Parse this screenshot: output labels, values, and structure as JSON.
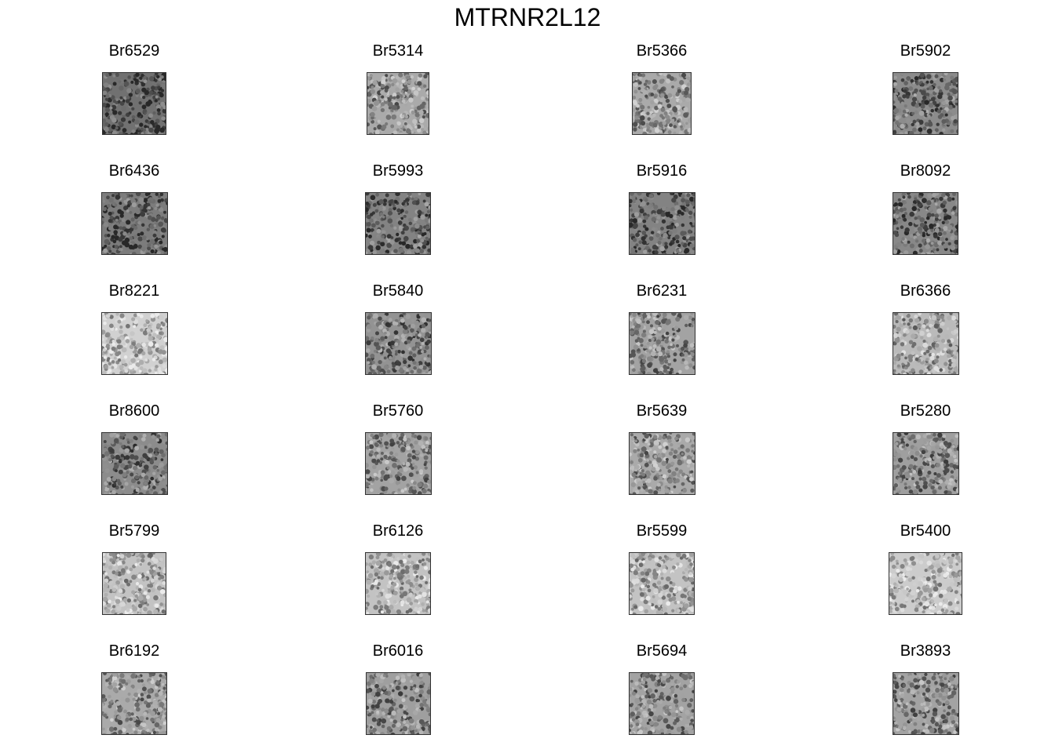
{
  "title": "MTRNR2L12",
  "chart_data": {
    "type": "heatmap",
    "title": "MTRNR2L12",
    "layout": "small multiples, 6 rows x 4 columns, grayscale spot maps",
    "panels": [
      {
        "name": "Br6529",
        "shade": 0.3
      },
      {
        "name": "Br5314",
        "shade": 0.55
      },
      {
        "name": "Br5366",
        "shade": 0.55
      },
      {
        "name": "Br5902",
        "shade": 0.42
      },
      {
        "name": "Br6436",
        "shade": 0.35
      },
      {
        "name": "Br5993",
        "shade": 0.38
      },
      {
        "name": "Br5916",
        "shade": 0.38
      },
      {
        "name": "Br8092",
        "shade": 0.4
      },
      {
        "name": "Br8221",
        "shade": 0.72
      },
      {
        "name": "Br5840",
        "shade": 0.45
      },
      {
        "name": "Br6231",
        "shade": 0.52
      },
      {
        "name": "Br6366",
        "shade": 0.62
      },
      {
        "name": "Br8600",
        "shade": 0.42
      },
      {
        "name": "Br5760",
        "shade": 0.52
      },
      {
        "name": "Br5639",
        "shade": 0.55
      },
      {
        "name": "Br5280",
        "shade": 0.5
      },
      {
        "name": "Br5799",
        "shade": 0.66
      },
      {
        "name": "Br6126",
        "shade": 0.66
      },
      {
        "name": "Br5599",
        "shade": 0.66
      },
      {
        "name": "Br5400",
        "shade": 0.7
      },
      {
        "name": "Br6192",
        "shade": 0.55
      },
      {
        "name": "Br6016",
        "shade": 0.5
      },
      {
        "name": "Br5694",
        "shade": 0.52
      },
      {
        "name": "Br3893",
        "shade": 0.52
      }
    ]
  }
}
